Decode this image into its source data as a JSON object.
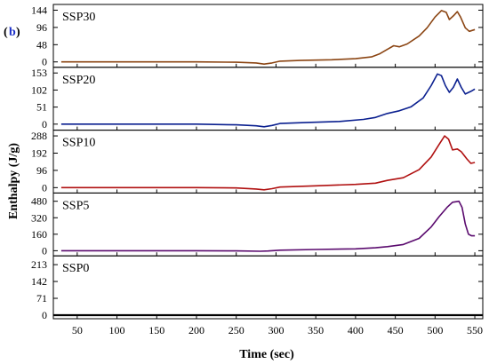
{
  "figure_label": "b",
  "chart_data": {
    "type": "line",
    "xlabel": "Time (sec)",
    "ylabel": "Enthalpy (J/g)",
    "xlim": [
      20,
      560
    ],
    "xticks": [
      50,
      100,
      150,
      200,
      250,
      300,
      350,
      400,
      450,
      500,
      550
    ],
    "grid": false,
    "panels": [
      {
        "label": "SSP30",
        "color": "#8b4513",
        "yticks": [
          "0",
          "48",
          "96",
          "144"
        ],
        "ytick_values": [
          0,
          48,
          96,
          144
        ],
        "ylim": [
          -15,
          160
        ],
        "points": [
          [
            30,
            0
          ],
          [
            100,
            0
          ],
          [
            200,
            0
          ],
          [
            250,
            -1
          ],
          [
            275,
            -3
          ],
          [
            285,
            -6
          ],
          [
            295,
            -3
          ],
          [
            305,
            2
          ],
          [
            330,
            4
          ],
          [
            370,
            6
          ],
          [
            400,
            9
          ],
          [
            420,
            14
          ],
          [
            430,
            22
          ],
          [
            440,
            35
          ],
          [
            448,
            45
          ],
          [
            455,
            42
          ],
          [
            465,
            50
          ],
          [
            480,
            72
          ],
          [
            490,
            95
          ],
          [
            500,
            125
          ],
          [
            508,
            143
          ],
          [
            514,
            138
          ],
          [
            518,
            118
          ],
          [
            523,
            128
          ],
          [
            528,
            140
          ],
          [
            532,
            125
          ],
          [
            538,
            95
          ],
          [
            543,
            85
          ],
          [
            550,
            90
          ]
        ]
      },
      {
        "label": "SSP20",
        "color": "#0a1f8f",
        "yticks": [
          "0",
          "51",
          "102",
          "153"
        ],
        "ytick_values": [
          0,
          51,
          102,
          153
        ],
        "ylim": [
          -18,
          170
        ],
        "points": [
          [
            30,
            0
          ],
          [
            100,
            0
          ],
          [
            200,
            0
          ],
          [
            250,
            -2
          ],
          [
            275,
            -5
          ],
          [
            285,
            -8
          ],
          [
            295,
            -4
          ],
          [
            305,
            2
          ],
          [
            340,
            5
          ],
          [
            380,
            8
          ],
          [
            410,
            14
          ],
          [
            425,
            20
          ],
          [
            440,
            32
          ],
          [
            455,
            40
          ],
          [
            470,
            52
          ],
          [
            485,
            78
          ],
          [
            495,
            115
          ],
          [
            503,
            150
          ],
          [
            508,
            145
          ],
          [
            513,
            115
          ],
          [
            518,
            95
          ],
          [
            523,
            110
          ],
          [
            528,
            135
          ],
          [
            533,
            110
          ],
          [
            538,
            90
          ],
          [
            545,
            98
          ],
          [
            550,
            105
          ]
        ]
      },
      {
        "label": "SSP10",
        "color": "#b01010",
        "yticks": [
          "0",
          "96",
          "192",
          "288"
        ],
        "ytick_values": [
          0,
          96,
          192,
          288
        ],
        "ylim": [
          -30,
          320
        ],
        "points": [
          [
            30,
            0
          ],
          [
            100,
            0
          ],
          [
            200,
            0
          ],
          [
            250,
            -2
          ],
          [
            275,
            -8
          ],
          [
            285,
            -12
          ],
          [
            295,
            -6
          ],
          [
            305,
            3
          ],
          [
            350,
            10
          ],
          [
            400,
            18
          ],
          [
            425,
            25
          ],
          [
            440,
            40
          ],
          [
            460,
            55
          ],
          [
            480,
            100
          ],
          [
            495,
            170
          ],
          [
            505,
            240
          ],
          [
            512,
            288
          ],
          [
            517,
            270
          ],
          [
            522,
            210
          ],
          [
            528,
            215
          ],
          [
            533,
            200
          ],
          [
            540,
            160
          ],
          [
            545,
            135
          ],
          [
            550,
            140
          ]
        ]
      },
      {
        "label": "SSP5",
        "color": "#5a0a6e",
        "yticks": [
          "0",
          "160",
          "320",
          "480"
        ],
        "ytick_values": [
          0,
          160,
          320,
          480
        ],
        "ylim": [
          -50,
          560
        ],
        "points": [
          [
            30,
            0
          ],
          [
            100,
            0
          ],
          [
            200,
            0
          ],
          [
            250,
            -2
          ],
          [
            280,
            -5
          ],
          [
            290,
            -3
          ],
          [
            305,
            5
          ],
          [
            350,
            12
          ],
          [
            400,
            18
          ],
          [
            425,
            28
          ],
          [
            440,
            40
          ],
          [
            460,
            60
          ],
          [
            480,
            120
          ],
          [
            495,
            230
          ],
          [
            505,
            330
          ],
          [
            515,
            420
          ],
          [
            522,
            470
          ],
          [
            530,
            480
          ],
          [
            534,
            420
          ],
          [
            538,
            260
          ],
          [
            542,
            160
          ],
          [
            546,
            145
          ],
          [
            550,
            145
          ]
        ]
      },
      {
        "label": "SSP0",
        "color": "#000000",
        "yticks": [
          "0",
          "71",
          "142",
          "213"
        ],
        "ytick_values": [
          0,
          71,
          142,
          213
        ],
        "ylim": [
          -15,
          250
        ],
        "points": [
          [
            20,
            0
          ],
          [
            560,
            0
          ]
        ]
      }
    ]
  }
}
